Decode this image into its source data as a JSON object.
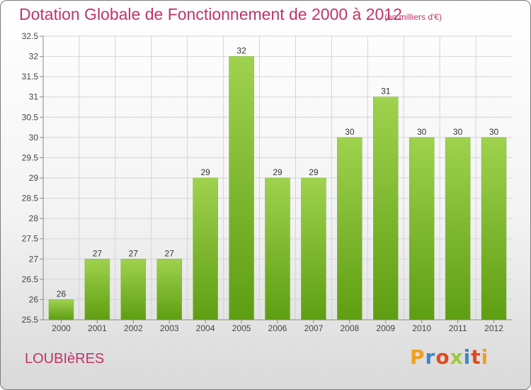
{
  "title": "Dotation Globale de Fonctionnement de 2000 à 2012",
  "unit_note": "(en milliers d'€)",
  "place": "LOUBIèRES",
  "logo": {
    "letters": [
      "P",
      "r",
      "o",
      "x",
      "i",
      "t",
      "i"
    ]
  },
  "colors": {
    "title": "#c0336a",
    "bar_top": "#9fd24e",
    "bar_bottom": "#5e9e12",
    "grid": "#d4d4d4"
  },
  "chart_data": {
    "type": "bar",
    "categories": [
      "2000",
      "2001",
      "2002",
      "2003",
      "2004",
      "2005",
      "2006",
      "2007",
      "2008",
      "2009",
      "2010",
      "2011",
      "2012"
    ],
    "values": [
      26,
      27,
      27,
      27,
      29,
      32,
      29,
      29,
      30,
      31,
      30,
      30,
      30
    ],
    "data_labels": [
      "26",
      "27",
      "27",
      "27",
      "29",
      "32",
      "29",
      "29",
      "30",
      "31",
      "30",
      "30",
      "30"
    ],
    "ylim": [
      25.5,
      32.5
    ],
    "yticks": [
      25.5,
      26,
      26.5,
      27,
      27.5,
      28,
      28.5,
      29,
      29.5,
      30,
      30.5,
      31,
      31.5,
      32,
      32.5
    ],
    "ytick_labels": [
      "25.5",
      "26",
      "26.5",
      "27",
      "27.5",
      "28",
      "28.5",
      "29",
      "29.5",
      "30",
      "30.5",
      "31",
      "31.5",
      "32",
      "32.5"
    ],
    "grid": true,
    "xlabel": "",
    "ylabel": ""
  }
}
